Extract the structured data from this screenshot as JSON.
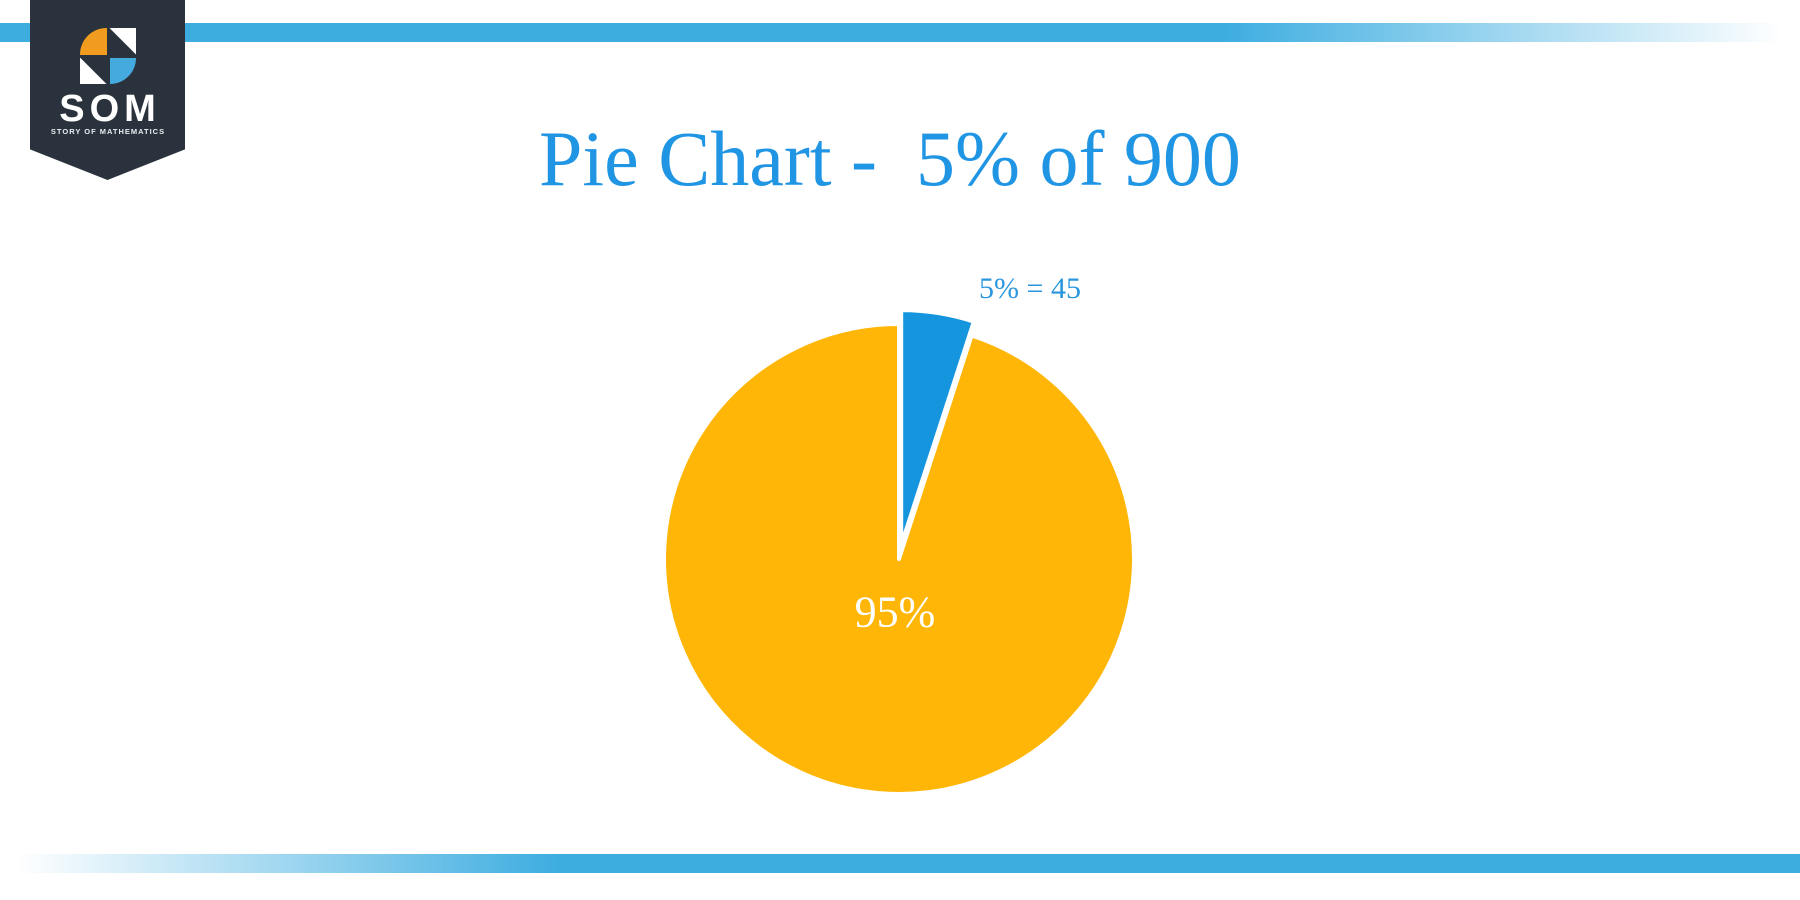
{
  "title": "Pie Chart -  5% of 900",
  "logo": {
    "name": "SOM",
    "tagline": "STORY OF MATHEMATICS"
  },
  "colors": {
    "stripe_blue": "#3dade0",
    "pennant_navy": "#2a333d",
    "logo_orange": "#f29c1f",
    "logo_blue": "#45aadd",
    "title_blue": "#2095e4",
    "pie_orange": "#ffb606",
    "pie_blue": "#1495de",
    "slice_label_white": "#ffffff",
    "callout_label_blue": "#2a96dd"
  },
  "chart_data": {
    "type": "pie",
    "title": "Pie Chart -  5% of 900",
    "direction": "clockwise",
    "start_angle_deg": 0,
    "legend_position": "none",
    "slices": [
      {
        "label": "5% = 45",
        "value": 5,
        "color": "#1495de",
        "exploded": true
      },
      {
        "label": "95%",
        "value": 95,
        "color": "#ffb606",
        "exploded": false
      }
    ]
  }
}
